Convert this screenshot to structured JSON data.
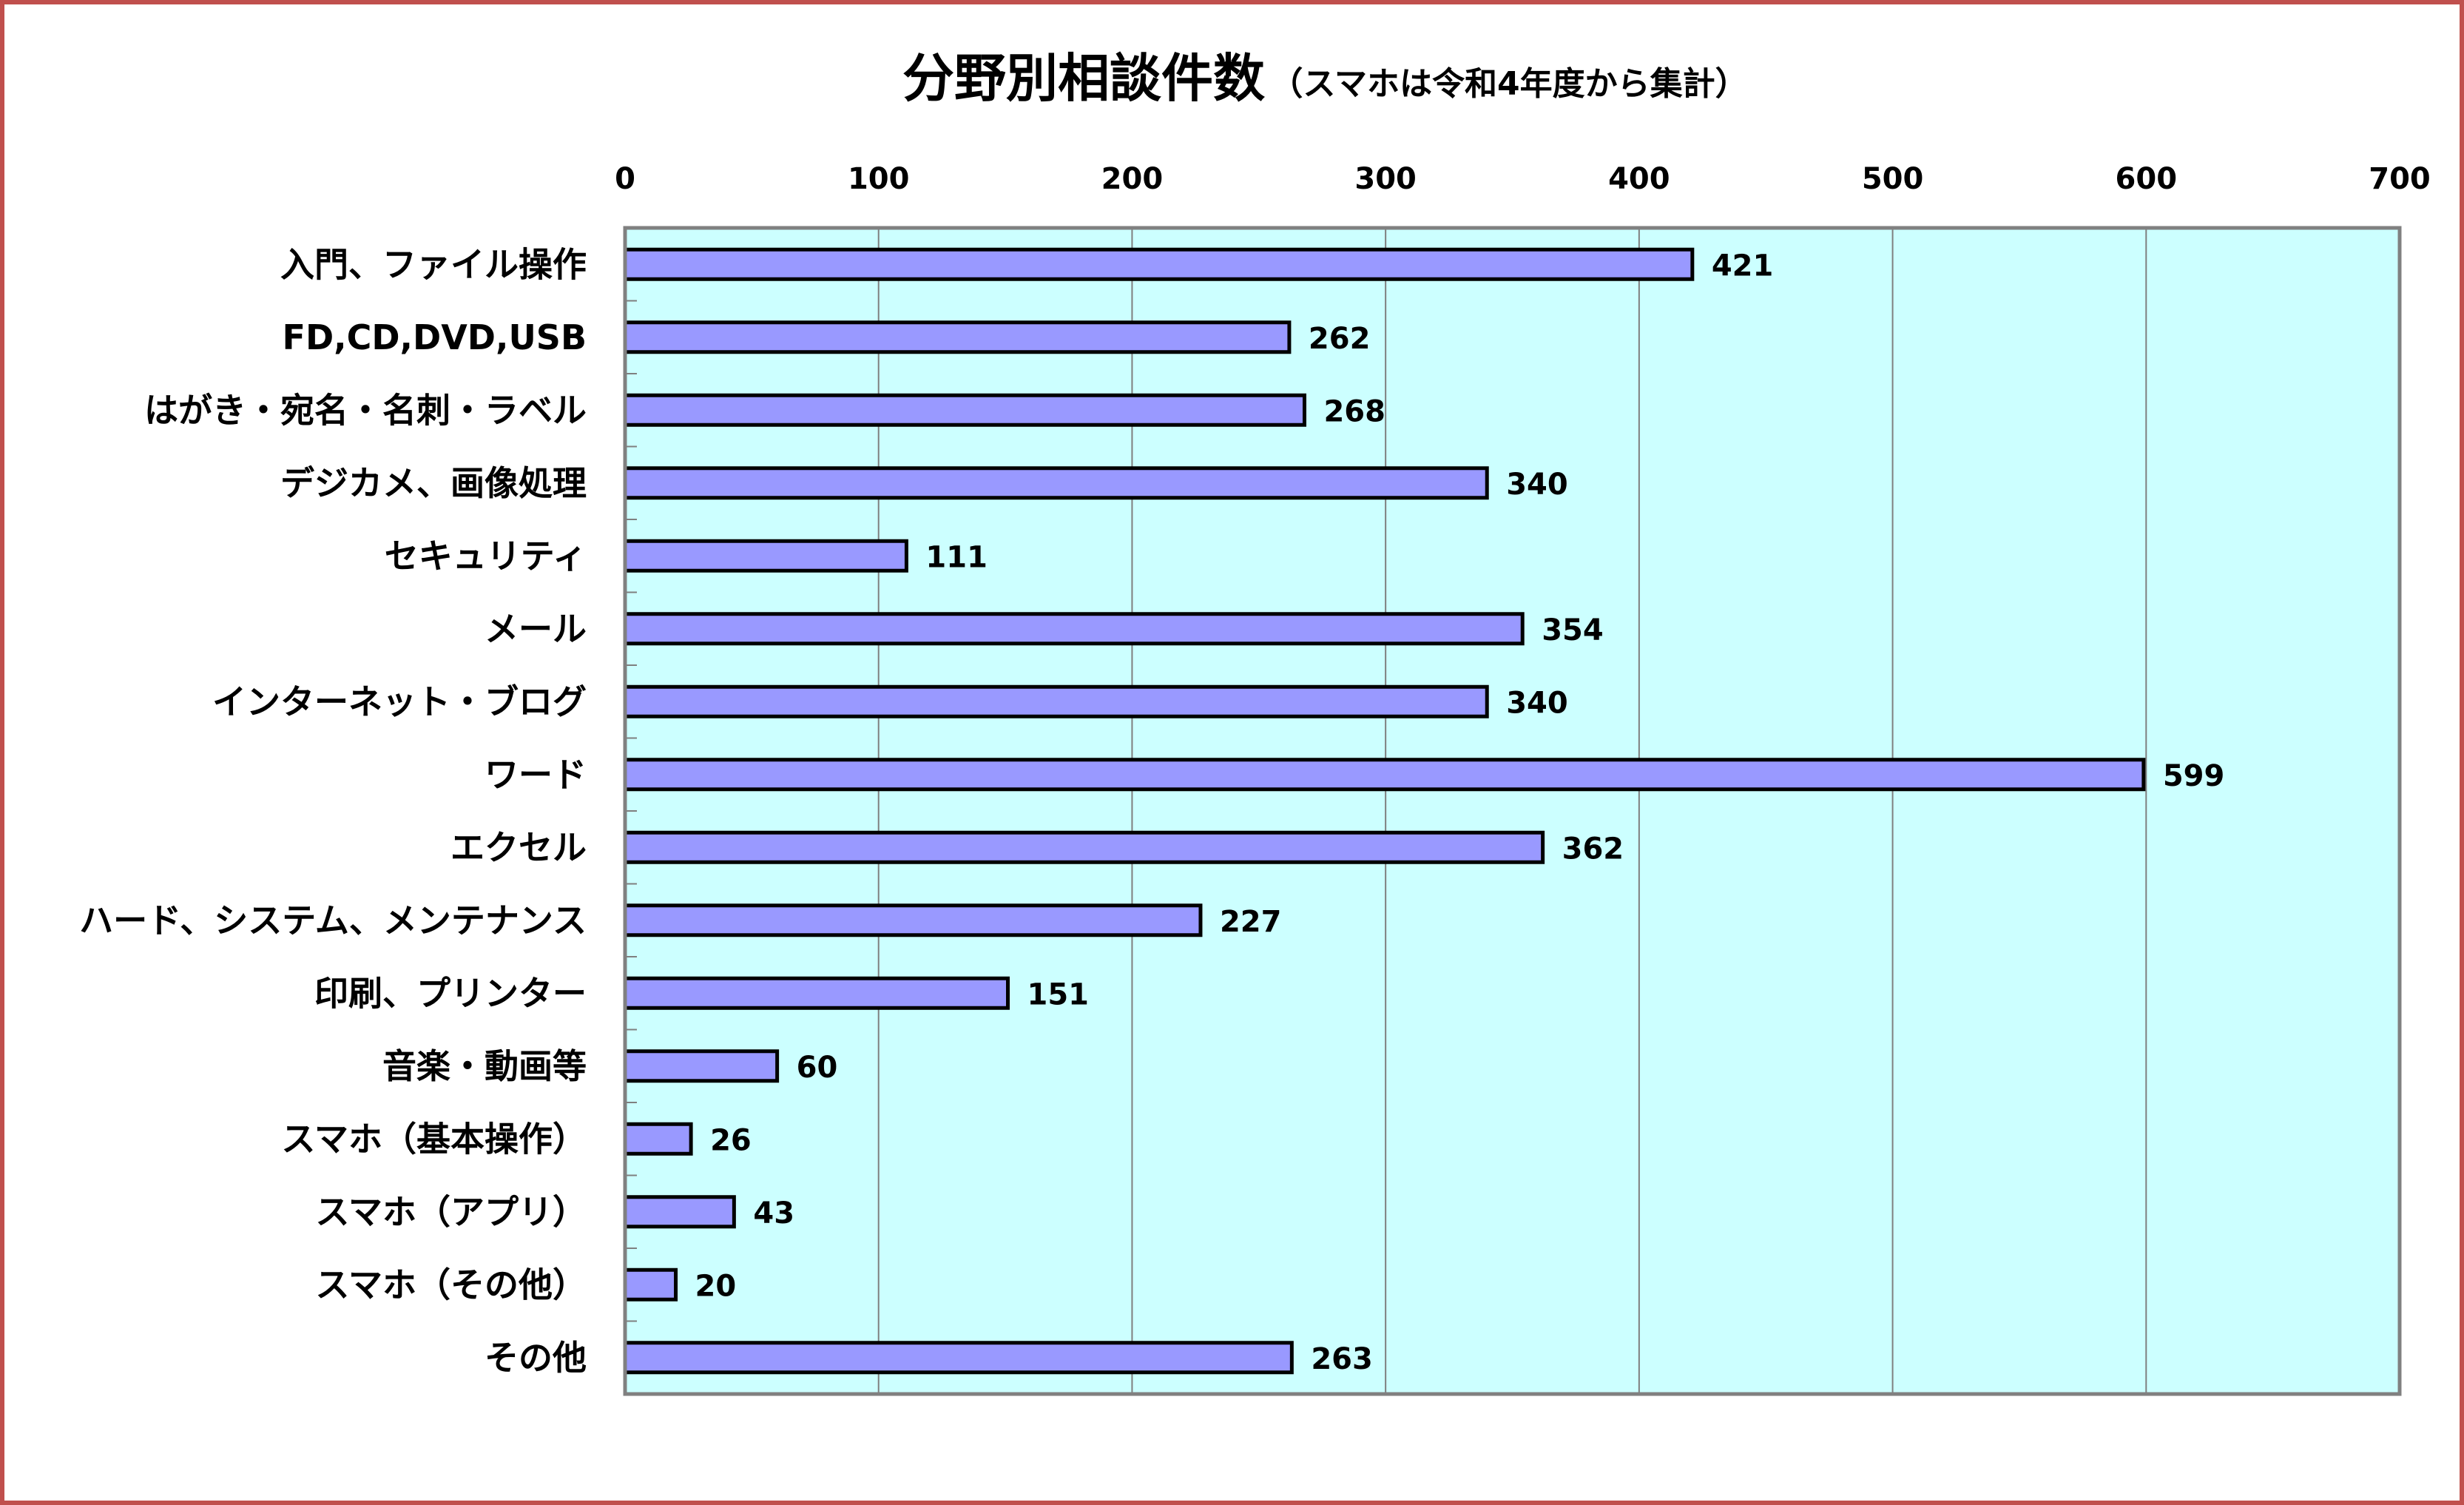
{
  "chart_data": {
    "type": "bar",
    "orientation": "horizontal",
    "title": "分野別相談件数",
    "subtitle": "（スマホは令和4年度から集計）",
    "categories": [
      "入門、ファイル操作",
      "FD,CD,DVD,USB",
      "はがき・宛名・名刺・ラベル",
      "デジカメ、画像処理",
      "セキュリティ",
      "メール",
      "インターネット・ブログ",
      "ワード",
      "エクセル",
      "ハード、システム、メンテナンス",
      "印刷、プリンター",
      "音楽・動画等",
      "スマホ（基本操作）",
      "スマホ（アプリ）",
      "スマホ（その他）",
      "その他"
    ],
    "values": [
      421,
      262,
      268,
      340,
      111,
      354,
      340,
      599,
      362,
      227,
      151,
      60,
      26,
      43,
      20,
      263
    ],
    "xlim": [
      0,
      700
    ],
    "xticks": [
      0,
      100,
      200,
      300,
      400,
      500,
      600,
      700
    ],
    "axis_position": "top",
    "grid": true,
    "data_labels": true,
    "legend": "none",
    "colors": {
      "bar": "#9999ff",
      "bar_border": "#000000",
      "plot_bg": "#ccffff",
      "grid": "#7f7f7f",
      "frame": "#c0504d"
    }
  }
}
